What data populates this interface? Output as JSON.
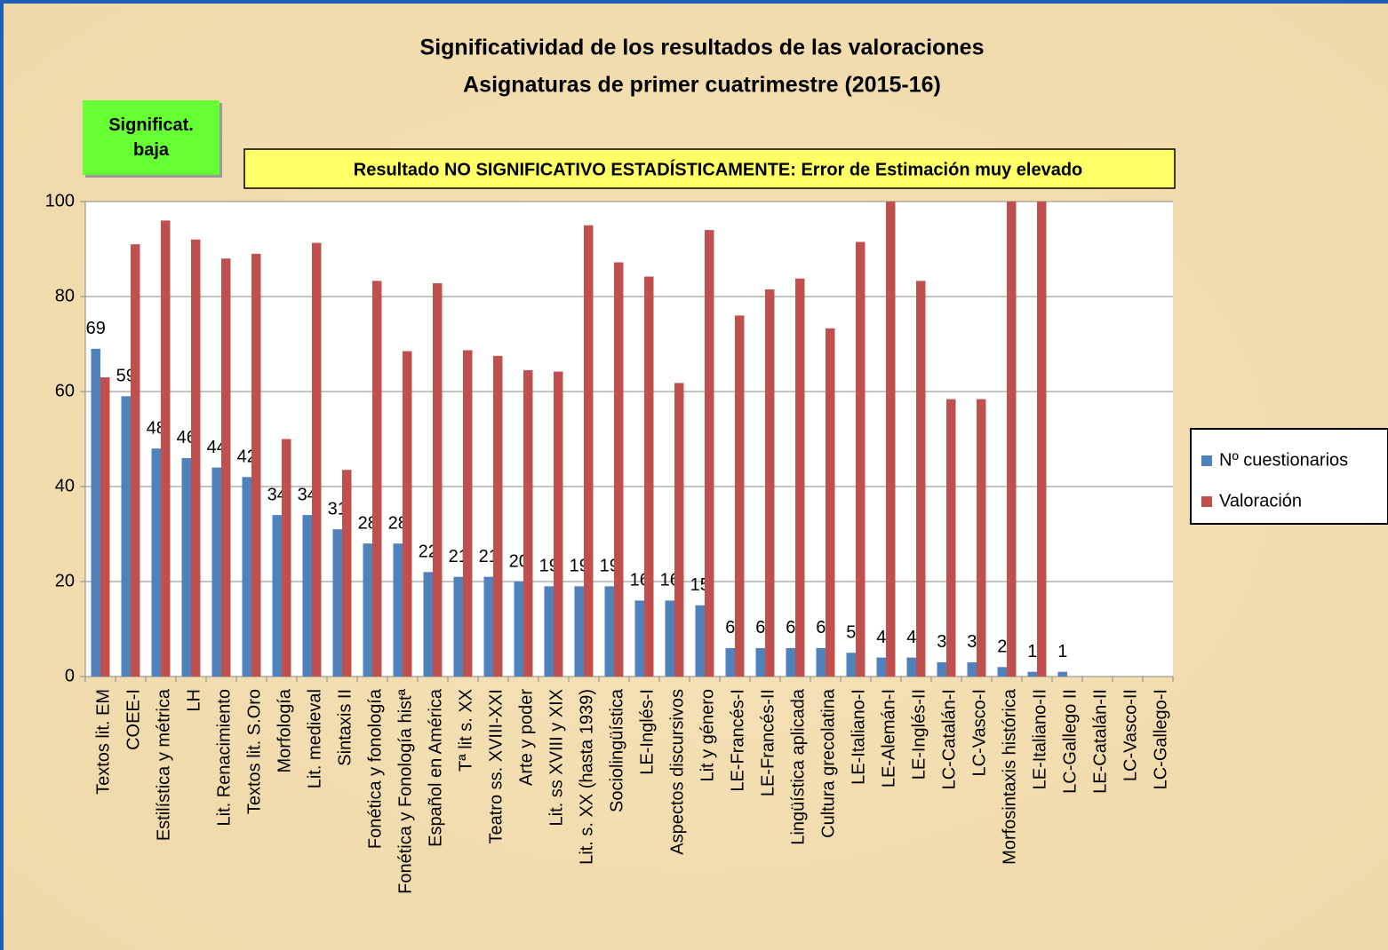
{
  "chart_data": {
    "type": "bar",
    "title": "Significatividad de los resultados de las valoraciones",
    "subtitle": "Asignaturas de primer cuatrimestre (2015-16)",
    "annotations": [
      "Significat. baja",
      "Resultado NO SIGNIFICATIVO ESTADÍSTICAMENTE: Error de Estimación muy elevado"
    ],
    "categories": [
      "Textos lit. EM",
      "COEE-I",
      "Estilística y métrica",
      "LH",
      "Lit. Renacimiento",
      "Textos lit. S.Oro",
      "Morfología",
      "Lit. medieval",
      "Sintaxis II",
      "Fonética y fonología",
      "Fonética y Fonología histª",
      "Español en América",
      "Tª lit s. XX",
      "Teatro ss. XVIII-XXI",
      "Arte y poder",
      "Lit. ss XVIII y XIX",
      "Lit. s. XX (hasta 1939)",
      "Sociolingüística",
      "LE-Inglés-I",
      "Aspectos discursivos",
      "Lit y género",
      "LE-Francés-I",
      "LE-Francés-II",
      "Lingüística aplicada",
      "Cultura grecolatina",
      "LE-Italiano-I",
      "LE-Alemán-I",
      "LE-Inglés-II",
      "LC-Catalán-I",
      "LC-Vasco-I",
      "Morfosintaxis histórica",
      "LE-Italiano-II",
      "LC-Gallego II",
      "LE-Catalán-II",
      "LC-Vasco-II",
      "LC-Gallego-I"
    ],
    "series": [
      {
        "name": "Nº cuestionarios",
        "color": "#4f81bd",
        "data_labels": true,
        "values": [
          69,
          59,
          48,
          46,
          44,
          42,
          34,
          34,
          31,
          28,
          28,
          22,
          21,
          21,
          20,
          19,
          19,
          19,
          16,
          16,
          15,
          6,
          6,
          6,
          6,
          5,
          4,
          4,
          3,
          3,
          2,
          1,
          1,
          null,
          null,
          null
        ]
      },
      {
        "name": "Valoración",
        "color": "#c0504d",
        "data_labels": false,
        "values": [
          63,
          91,
          96,
          92,
          88,
          89,
          50,
          91.3,
          43.5,
          83.3,
          68.5,
          82.8,
          68.7,
          67.5,
          64.5,
          64.2,
          95,
          87.2,
          84.2,
          61.8,
          94,
          76,
          81.5,
          83.8,
          73.3,
          91.5,
          100,
          83.3,
          58.4,
          58.4,
          100,
          100,
          null,
          null,
          null,
          null
        ]
      }
    ],
    "ylim": [
      0,
      100
    ],
    "yticks": [
      0,
      20,
      40,
      60,
      80,
      100
    ],
    "grid": true,
    "legend": "right"
  }
}
